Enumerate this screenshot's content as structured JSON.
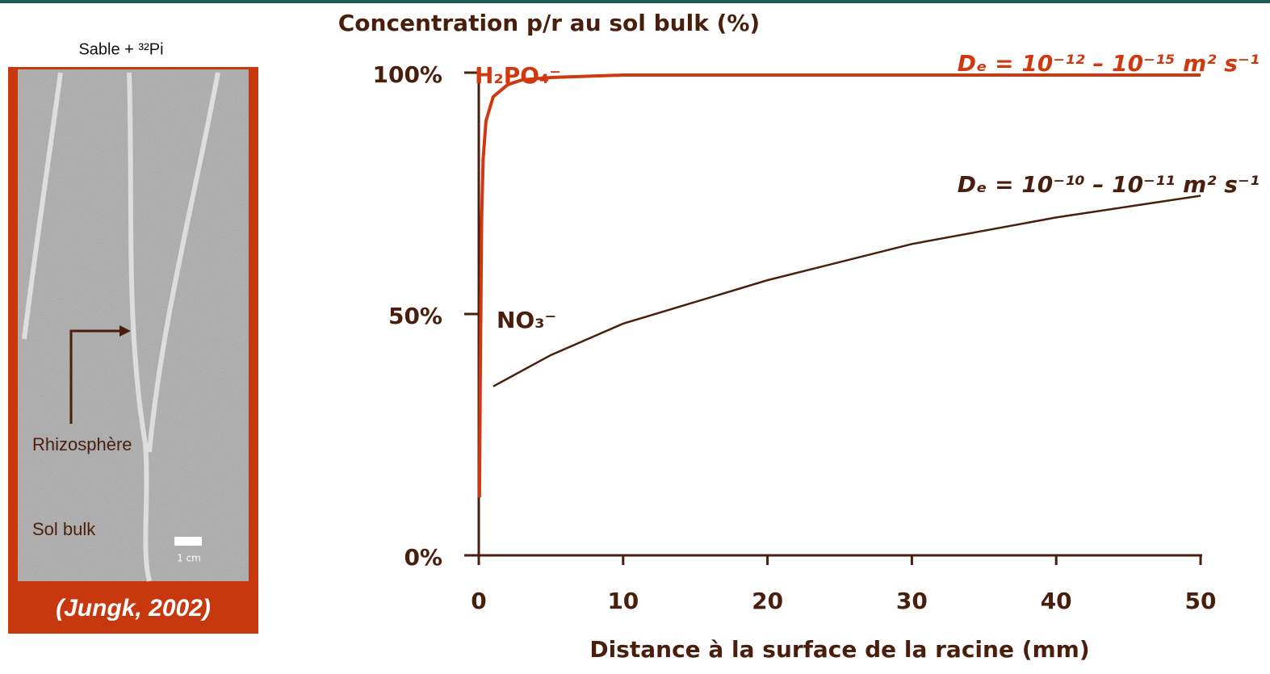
{
  "chart_data": {
    "type": "line",
    "title": "Concentration p/r au sol bulk (%)",
    "x_label": "Distance à la surface de la racine (mm)",
    "xlim": [
      0,
      50
    ],
    "xticks": [
      0,
      10,
      20,
      30,
      40,
      50
    ],
    "ylim": [
      0,
      100
    ],
    "yticks": [
      {
        "value": 0,
        "label": "0%"
      },
      {
        "value": 50,
        "label": "50%"
      },
      {
        "value": 100,
        "label": "100%"
      }
    ],
    "series": [
      {
        "name": "H₂PO₄⁻",
        "label": "Dₑ = 10⁻¹² – 10⁻¹⁵  m² s⁻¹",
        "color": "#d0390f",
        "x": [
          0.05,
          0.1,
          0.2,
          0.3,
          0.5,
          1,
          2,
          3,
          5,
          10,
          20,
          30,
          40,
          50
        ],
        "values": [
          12,
          35,
          70,
          82,
          90,
          95,
          97.5,
          98.5,
          99,
          99.5,
          99.5,
          99.5,
          99.5,
          99.5
        ]
      },
      {
        "name": "NO₃⁻",
        "label": "Dₑ = 10⁻¹⁰ – 10⁻¹¹  m² s⁻¹",
        "color": "#4a1e0c",
        "x": [
          1,
          5,
          10,
          20,
          30,
          40,
          50
        ],
        "values": [
          35,
          41.5,
          48,
          57,
          64.5,
          70,
          74.5
        ]
      }
    ]
  },
  "image_panel": {
    "caption_top": "Sable + ³²Pi",
    "arrow_label": "Rhizosphère",
    "bulk_label": "Sol bulk",
    "scale_label": "1 cm",
    "source": "(Jungk, 2002)"
  }
}
